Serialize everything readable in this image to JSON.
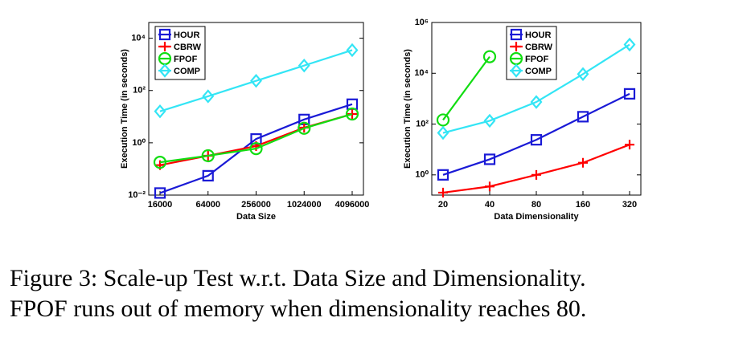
{
  "chart_data": [
    {
      "type": "line",
      "ylabel": "Execution Time (in seconds)",
      "xlabel": "Data Size",
      "categories": [
        "16000",
        "64000",
        "256000",
        "1024000",
        "4096000"
      ],
      "log_y": true,
      "ylim": [
        0.01,
        40000
      ],
      "yticks": [
        {
          "value": 0.01,
          "label": "10⁻²"
        },
        {
          "value": 1,
          "label": "10⁰"
        },
        {
          "value": 100,
          "label": "10²"
        },
        {
          "value": 10000,
          "label": "10⁴"
        }
      ],
      "legend": "upper left",
      "series": [
        {
          "name": "HOUR",
          "color": "#1a1ad6",
          "marker": "square",
          "values": [
            0.012,
            0.055,
            1.4,
            7.8,
            30
          ]
        },
        {
          "name": "CBRW",
          "color": "#ff0000",
          "marker": "plus",
          "values": [
            0.14,
            0.32,
            0.75,
            3.8,
            12.6
          ]
        },
        {
          "name": "FPOF",
          "color": "#11dd11",
          "marker": "circle",
          "values": [
            0.18,
            0.32,
            0.6,
            3.6,
            12.6
          ]
        },
        {
          "name": "COMP",
          "color": "#33e5f5",
          "marker": "diamond",
          "values": [
            16,
            60,
            235,
            900,
            3500
          ]
        }
      ]
    },
    {
      "type": "line",
      "ylabel": "Execution Time (in seconds)",
      "xlabel": "Data Dimensionality",
      "categories": [
        "20",
        "40",
        "80",
        "160",
        "320"
      ],
      "log_y": true,
      "ylim": [
        0.16,
        1000000
      ],
      "yticks": [
        {
          "value": 1,
          "label": "10⁰"
        },
        {
          "value": 100,
          "label": "10²"
        },
        {
          "value": 10000,
          "label": "10⁴"
        },
        {
          "value": 1000000,
          "label": "10⁶"
        }
      ],
      "legend": "upper center",
      "series": [
        {
          "name": "HOUR",
          "color": "#1a1ad6",
          "marker": "square",
          "values": [
            1,
            4.1,
            24,
            195,
            1550
          ]
        },
        {
          "name": "CBRW",
          "color": "#ff0000",
          "marker": "plus",
          "values": [
            0.2,
            0.35,
            1,
            3,
            15.5
          ]
        },
        {
          "name": "FPOF",
          "color": "#11dd11",
          "marker": "circle",
          "values": [
            145,
            45000,
            null,
            null,
            null
          ]
        },
        {
          "name": "COMP",
          "color": "#33e5f5",
          "marker": "diamond",
          "values": [
            45,
            135,
            740,
            9300,
            135000
          ]
        }
      ]
    }
  ],
  "caption": [
    "Figure 3: Scale-up Test w.r.t. Data Size and Dimensionality.",
    "FPOF runs out of memory when dimensionality reaches 80."
  ]
}
